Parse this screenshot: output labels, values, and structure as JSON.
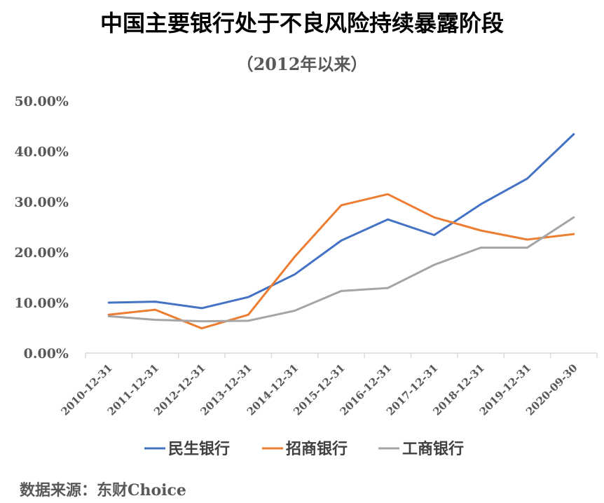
{
  "chart_data": {
    "type": "line",
    "title": "中国主要银行处于不良风险持续暴露阶段",
    "subtitle": "（2012年以来）",
    "source": "数据来源：东财Choice",
    "categories": [
      "2010-12-31",
      "2011-12-31",
      "2012-12-31",
      "2013-12-31",
      "2014-12-31",
      "2015-12-31",
      "2016-12-31",
      "2017-12-31",
      "2018-12-31",
      "2019-12-31",
      "2020-09-30"
    ],
    "y_ticks": [
      "0.00%",
      "10.00%",
      "20.00%",
      "30.00%",
      "40.00%",
      "50.00%"
    ],
    "ylim": [
      0,
      50
    ],
    "series": [
      {
        "name": "民生银行",
        "color": "#4472C4",
        "values": [
          10.0,
          10.2,
          8.9,
          11.1,
          15.6,
          22.3,
          26.5,
          23.4,
          29.5,
          34.6,
          43.4
        ]
      },
      {
        "name": "招商银行",
        "color": "#ED7D31",
        "values": [
          7.6,
          8.6,
          4.9,
          7.6,
          19.1,
          29.3,
          31.5,
          26.9,
          24.3,
          22.5,
          23.6
        ]
      },
      {
        "name": "工商银行",
        "color": "#A5A5A5",
        "values": [
          7.3,
          6.6,
          6.3,
          6.4,
          8.4,
          12.3,
          12.9,
          17.5,
          20.9,
          20.9,
          26.9
        ]
      }
    ],
    "legend_position": "bottom"
  }
}
